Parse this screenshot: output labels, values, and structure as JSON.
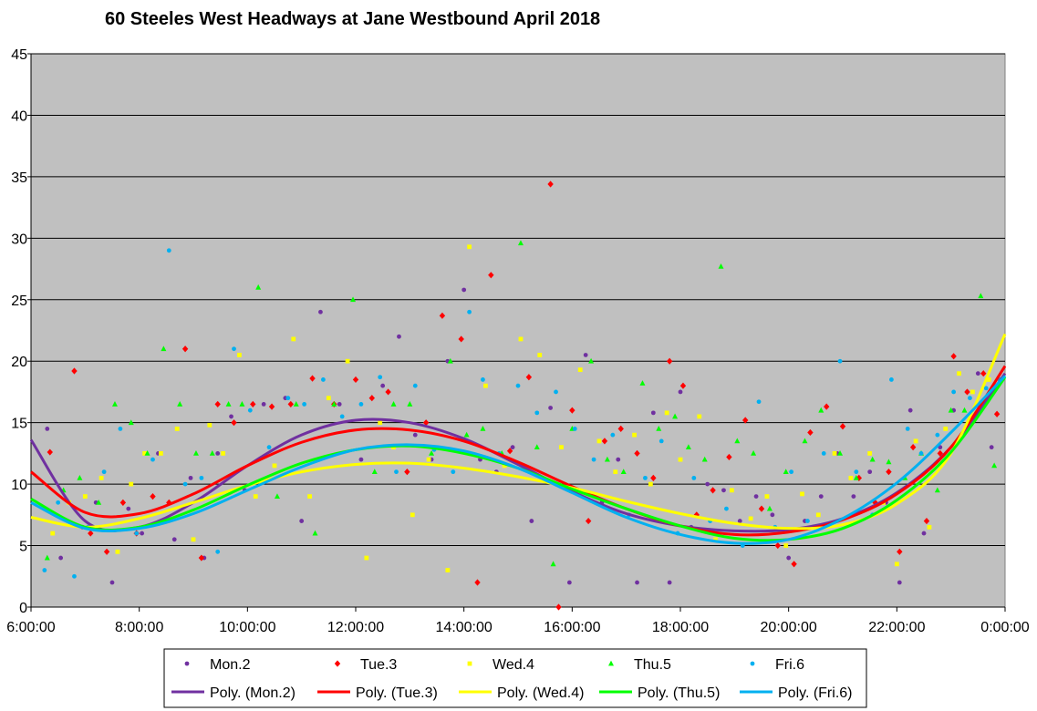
{
  "chart_data": {
    "type": "scatter",
    "title": "60 Steeles West Headways at Jane Westbound April 2018",
    "xlabel": "",
    "ylabel": "",
    "x_unit": "hours",
    "xlim": [
      6,
      24
    ],
    "ylim": [
      0,
      45
    ],
    "x_ticks": [
      6,
      8,
      10,
      12,
      14,
      16,
      18,
      20,
      22,
      24
    ],
    "x_tick_labels": [
      "6:00:00",
      "8:00:00",
      "10:00:00",
      "12:00:00",
      "14:00:00",
      "16:00:00",
      "18:00:00",
      "20:00:00",
      "22:00:00",
      "0:00:00"
    ],
    "y_ticks": [
      0,
      5,
      10,
      15,
      20,
      25,
      30,
      35,
      40,
      45
    ],
    "y_tick_labels": [
      "0",
      "5",
      "10",
      "15",
      "20",
      "25",
      "30",
      "35",
      "40",
      "45"
    ],
    "grid": "horizontal",
    "plot_background": "#c0c0c0",
    "legend_position": "bottom",
    "series": [
      {
        "name": "Mon.2",
        "marker": "circle",
        "color": "#7030a0",
        "x": [
          6.3,
          6.55,
          6.95,
          7.2,
          7.5,
          7.8,
          8.05,
          8.35,
          8.65,
          8.95,
          9.2,
          9.45,
          9.7,
          9.95,
          10.3,
          10.7,
          11.0,
          11.35,
          11.7,
          12.1,
          12.5,
          12.8,
          13.1,
          13.4,
          13.7,
          14.0,
          14.3,
          14.6,
          14.9,
          15.25,
          15.6,
          15.95,
          16.25,
          16.55,
          16.85,
          17.2,
          17.5,
          17.8,
          18.0,
          18.2,
          18.5,
          18.8,
          19.1,
          19.4,
          19.7,
          20.0,
          20.3,
          20.6,
          20.9,
          21.2,
          21.5,
          21.8,
          22.05,
          22.25,
          22.5,
          22.8,
          23.05,
          23.3,
          23.5,
          23.75
        ],
        "y": [
          14.5,
          4,
          6.5,
          8.5,
          2,
          8,
          6,
          12.5,
          5.5,
          10.5,
          4,
          12.5,
          15.5,
          9.5,
          16.5,
          17,
          7,
          24,
          16.5,
          12,
          18,
          22,
          14,
          12,
          20,
          25.8,
          12,
          11,
          13,
          7,
          16.2,
          2,
          20.5,
          8.5,
          12,
          2,
          15.8,
          2,
          17.5,
          6.5,
          10,
          9.5,
          7,
          9,
          7.5,
          4,
          7,
          9,
          12.5,
          9,
          11,
          8.5,
          2,
          16,
          6,
          13,
          16,
          17.5,
          19,
          13
        ]
      },
      {
        "name": "Tue.3",
        "marker": "diamond",
        "color": "#ff0000",
        "x": [
          6.35,
          6.8,
          7.1,
          7.4,
          7.7,
          7.95,
          8.25,
          8.55,
          8.85,
          9.15,
          9.45,
          9.75,
          10.1,
          10.45,
          10.8,
          11.2,
          11.6,
          12.0,
          12.3,
          12.6,
          12.95,
          13.3,
          13.6,
          13.95,
          14.25,
          14.5,
          14.85,
          15.2,
          15.6,
          15.75,
          16.0,
          16.3,
          16.6,
          16.9,
          17.2,
          17.5,
          17.8,
          18.05,
          18.3,
          18.6,
          18.9,
          19.2,
          19.5,
          19.8,
          20.1,
          20.4,
          20.7,
          21.0,
          21.3,
          21.6,
          21.85,
          22.05,
          22.3,
          22.55,
          22.8,
          23.05,
          23.3,
          23.6,
          23.85
        ],
        "y": [
          12.6,
          19.2,
          6,
          4.5,
          8.5,
          6,
          9,
          8.5,
          21,
          4,
          16.5,
          15,
          16.5,
          16.3,
          16.5,
          18.6,
          16.5,
          18.5,
          17,
          17.5,
          11,
          15,
          23.7,
          21.8,
          2,
          27,
          12.7,
          18.7,
          34.4,
          0,
          16,
          7,
          13.5,
          14.5,
          12.5,
          10.5,
          20,
          18,
          7.5,
          9.5,
          12.2,
          15.2,
          8,
          5,
          3.5,
          14.2,
          16.3,
          14.7,
          10.5,
          8.5,
          11,
          4.5,
          13,
          7,
          12.5,
          20.4,
          17.5,
          19,
          15.7
        ]
      },
      {
        "name": "Wed.4",
        "marker": "square",
        "color": "#ffff00",
        "x": [
          6.4,
          6.7,
          7.0,
          7.3,
          7.6,
          7.85,
          8.1,
          8.4,
          8.7,
          9.0,
          9.3,
          9.55,
          9.85,
          10.15,
          10.5,
          10.85,
          11.15,
          11.5,
          11.85,
          12.2,
          12.45,
          12.7,
          13.05,
          13.35,
          13.7,
          14.1,
          14.4,
          14.75,
          15.05,
          15.4,
          15.8,
          16.15,
          16.5,
          16.8,
          17.15,
          17.45,
          17.75,
          18.0,
          18.35,
          18.65,
          18.95,
          19.3,
          19.6,
          19.95,
          20.25,
          20.55,
          20.85,
          21.15,
          21.5,
          21.75,
          22.0,
          22.35,
          22.6,
          22.9,
          23.15,
          23.4,
          23.7
        ],
        "y": [
          6,
          8.5,
          9,
          10.5,
          4.5,
          10,
          12.5,
          12.5,
          14.5,
          5.5,
          14.8,
          12.5,
          20.5,
          9,
          11.5,
          21.8,
          9,
          17,
          20,
          4,
          15,
          13,
          7.5,
          12,
          3,
          29.3,
          18,
          11.5,
          21.8,
          20.5,
          13,
          19.3,
          13.5,
          11,
          14,
          10,
          15.8,
          12,
          15.5,
          5.5,
          9.5,
          7.2,
          9,
          5,
          9.2,
          7.5,
          12.5,
          10.5,
          12.5,
          8.5,
          3.5,
          13.5,
          6.5,
          14.5,
          19,
          17.5,
          18.5
        ]
      },
      {
        "name": "Thu.5",
        "marker": "triangle",
        "color": "#00ff00",
        "x": [
          6.3,
          6.6,
          6.9,
          7.25,
          7.55,
          7.85,
          8.15,
          8.45,
          8.75,
          9.05,
          9.35,
          9.65,
          9.9,
          10.2,
          10.55,
          10.9,
          11.25,
          11.6,
          11.95,
          12.35,
          12.7,
          13.0,
          13.4,
          13.75,
          14.05,
          14.35,
          14.7,
          15.05,
          15.35,
          15.65,
          16.0,
          16.35,
          16.65,
          16.95,
          17.3,
          17.6,
          17.9,
          18.15,
          18.45,
          18.75,
          19.05,
          19.35,
          19.65,
          19.95,
          20.3,
          20.6,
          20.95,
          21.25,
          21.55,
          21.85,
          22.15,
          22.45,
          22.75,
          23.0,
          23.25,
          23.55,
          23.8
        ],
        "y": [
          4,
          9.5,
          10.5,
          8.5,
          16.5,
          15,
          12.5,
          21,
          16.5,
          12.5,
          12.5,
          16.5,
          16.5,
          26,
          9,
          16.5,
          6,
          16.5,
          25,
          11,
          16.5,
          16.5,
          12.5,
          20,
          14,
          14.5,
          12.5,
          29.6,
          13,
          3.5,
          14.5,
          20,
          12,
          11,
          18.2,
          14.5,
          15.5,
          13,
          12,
          27.7,
          13.5,
          12.5,
          8,
          11,
          13.5,
          16,
          12.5,
          10.5,
          12,
          11.8,
          10.5,
          12.5,
          9.5,
          16,
          16,
          25.3,
          11.5
        ]
      },
      {
        "name": "Fri.6",
        "marker": "circle",
        "color": "#00b0f0",
        "x": [
          6.25,
          6.5,
          6.8,
          7.05,
          7.35,
          7.65,
          7.95,
          8.25,
          8.55,
          8.85,
          9.15,
          9.45,
          9.75,
          10.05,
          10.4,
          10.75,
          11.05,
          11.4,
          11.75,
          12.1,
          12.45,
          12.75,
          13.1,
          13.45,
          13.8,
          14.1,
          14.35,
          14.65,
          15.0,
          15.35,
          15.7,
          16.05,
          16.4,
          16.75,
          17.05,
          17.35,
          17.65,
          17.95,
          18.25,
          18.55,
          18.85,
          19.15,
          19.45,
          19.75,
          20.05,
          20.35,
          20.65,
          20.95,
          21.25,
          21.55,
          21.9,
          22.2,
          22.45,
          22.75,
          23.05,
          23.35,
          23.65,
          23.9
        ],
        "y": [
          3,
          8.5,
          2.5,
          6.5,
          11,
          14.5,
          6,
          12,
          29,
          10,
          10.5,
          4.5,
          21,
          16,
          13,
          17,
          16.5,
          18.5,
          15.5,
          16.5,
          18.7,
          11,
          18,
          12.8,
          11,
          24,
          18.5,
          12.5,
          18,
          15.8,
          17.5,
          14.5,
          12,
          14,
          7.5,
          10.5,
          13.5,
          6,
          10.5,
          7,
          8,
          5,
          16.7,
          6.5,
          11,
          7,
          12.5,
          20,
          11,
          7.5,
          18.5,
          14.5,
          12.5,
          14,
          17.5,
          17,
          17.8,
          18.5
        ]
      }
    ],
    "trendlines": [
      {
        "name": "Poly. (Mon.2)",
        "color": "#7030a0",
        "type": "polynomial",
        "x": [
          6,
          7,
          8,
          9,
          10,
          11,
          12,
          13,
          14,
          15,
          16,
          17,
          18,
          19,
          20,
          21,
          22,
          23,
          24
        ],
        "y": [
          13.6,
          7,
          6.5,
          8.5,
          11.5,
          14,
          15.2,
          15,
          13.7,
          11.6,
          9.4,
          7.6,
          6.6,
          6.2,
          6.3,
          7.2,
          9.3,
          13,
          19
        ]
      },
      {
        "name": "Poly. (Tue.3)",
        "color": "#ff0000",
        "type": "polynomial",
        "x": [
          6,
          7,
          8,
          9,
          10,
          11,
          12,
          13,
          14,
          15,
          16,
          17,
          18,
          19,
          20,
          21,
          22,
          23,
          24
        ],
        "y": [
          11,
          7.7,
          7.6,
          9.2,
          11.5,
          13.4,
          14.4,
          14.4,
          13.5,
          11.8,
          9.8,
          8,
          6.6,
          5.9,
          6.1,
          7.1,
          9.2,
          13,
          19.6
        ]
      },
      {
        "name": "Poly. (Wed.4)",
        "color": "#ffff00",
        "type": "polynomial",
        "x": [
          6,
          7,
          8,
          9,
          10,
          11,
          12,
          13,
          14,
          15,
          16,
          17,
          18,
          19,
          20,
          21,
          22,
          23,
          24
        ],
        "y": [
          7.3,
          6.5,
          7.2,
          8.5,
          9.9,
          11,
          11.6,
          11.7,
          11.3,
          10.6,
          9.7,
          8.6,
          7.6,
          6.8,
          6.4,
          6.7,
          8.4,
          12.5,
          22.2
        ]
      },
      {
        "name": "Poly. (Thu.5)",
        "color": "#00ff00",
        "type": "polynomial",
        "x": [
          6,
          7,
          8,
          9,
          10,
          11,
          12,
          13,
          14,
          15,
          16,
          17,
          18,
          19,
          20,
          21,
          22,
          23,
          24
        ],
        "y": [
          8.8,
          6.5,
          6.5,
          7.9,
          9.9,
          11.7,
          12.8,
          13.1,
          12.5,
          11.3,
          9.6,
          8,
          6.6,
          5.6,
          5.5,
          6.4,
          8.7,
          12.6,
          18.7
        ]
      },
      {
        "name": "Poly. (Fri.6)",
        "color": "#00b0f0",
        "type": "polynomial",
        "x": [
          6,
          7,
          8,
          9,
          10,
          11,
          12,
          13,
          14,
          15,
          16,
          17,
          18,
          19,
          20,
          21,
          22,
          23,
          24
        ],
        "y": [
          8.5,
          6.4,
          6.4,
          7.6,
          9.5,
          11.4,
          12.8,
          13.2,
          12.7,
          11.3,
          9.3,
          7.3,
          5.9,
          5.2,
          5.5,
          7.2,
          10.1,
          14.2,
          18.8
        ]
      }
    ]
  }
}
